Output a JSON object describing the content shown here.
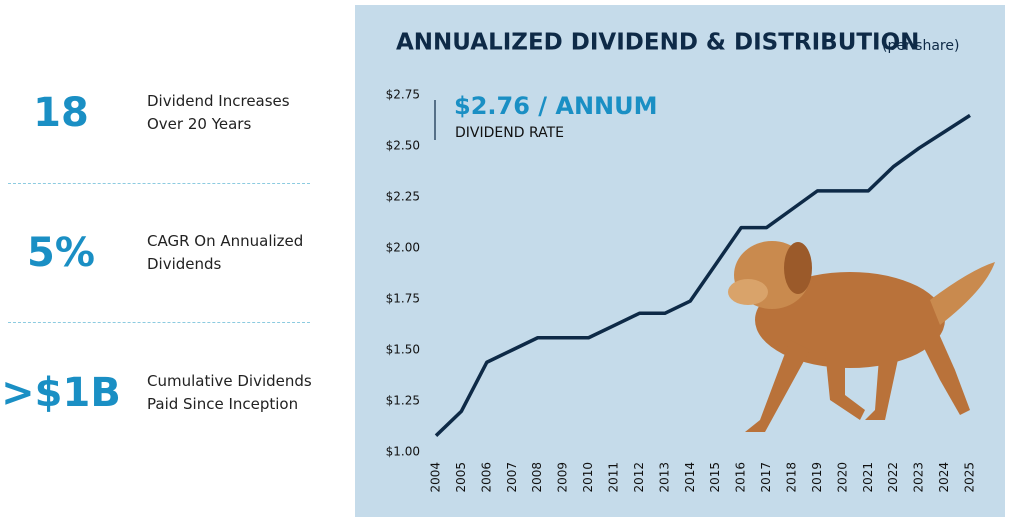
{
  "stats": [
    {
      "value": "18",
      "label": "Dividend Increases Over 20 Years"
    },
    {
      "value": "5%",
      "label": "CAGR On Annualized Dividends"
    },
    {
      "value": ">$1B",
      "label": "Cumulative Dividends Paid Since Inception"
    }
  ],
  "chart_data": {
    "type": "line",
    "title": "ANNUALIZED DIVIDEND & DISTRIBUTION",
    "subtitle": "(per share)",
    "annotation": {
      "headline": "$2.76 / ANNUM",
      "text": "DIVIDEND RATE"
    },
    "categories": [
      "2004",
      "2005",
      "2006",
      "2007",
      "2008",
      "2009",
      "2010",
      "2011",
      "2012",
      "2013",
      "2014",
      "2015",
      "2016",
      "2017",
      "2018",
      "2019",
      "2020",
      "2021",
      "2022",
      "2023",
      "2024",
      "2025"
    ],
    "values": [
      1.08,
      1.2,
      1.44,
      1.5,
      1.56,
      1.56,
      1.56,
      1.62,
      1.68,
      1.68,
      1.74,
      1.92,
      2.1,
      2.1,
      2.19,
      2.28,
      2.28,
      2.28,
      2.4,
      2.49,
      2.57,
      2.65
    ],
    "color": "#0e2a47",
    "ylim": [
      1.0,
      2.75
    ],
    "yticks": [
      {
        "value": 1.0,
        "label": "$1.00"
      },
      {
        "value": 1.25,
        "label": "$1.25"
      },
      {
        "value": 1.5,
        "label": "$1.50"
      },
      {
        "value": 1.75,
        "label": "$1.75"
      },
      {
        "value": 2.0,
        "label": "$2.00"
      },
      {
        "value": 2.25,
        "label": "$2.25"
      },
      {
        "value": 2.5,
        "label": "$2.50"
      },
      {
        "value": 2.75,
        "label": "$2.75"
      }
    ],
    "grid": false
  }
}
